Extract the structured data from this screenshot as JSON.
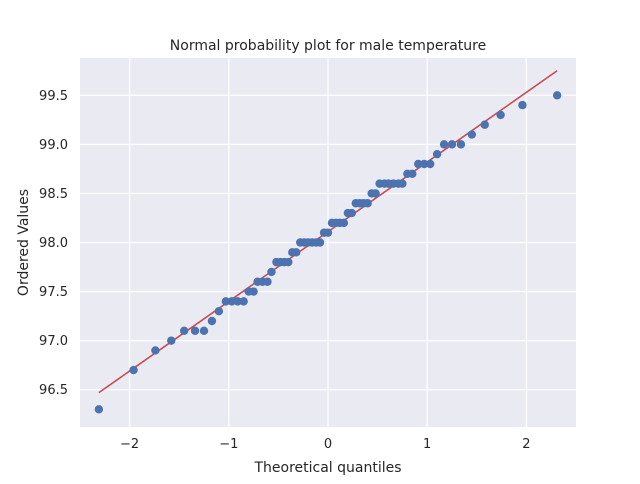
{
  "chart_data": {
    "type": "scatter",
    "title": "Normal probability plot for male temperature",
    "xlabel": "Theoretical quantiles",
    "ylabel": "Ordered Values",
    "xlim": [
      -2.5,
      2.5
    ],
    "ylim": [
      96.12,
      99.88
    ],
    "xticks": [
      -2,
      -1,
      0,
      1,
      2
    ],
    "xtick_labels": [
      "−2",
      "−1",
      "0",
      "1",
      "2"
    ],
    "yticks": [
      96.5,
      97.0,
      97.5,
      98.0,
      98.5,
      99.0,
      99.5
    ],
    "ytick_labels": [
      "96.5",
      "97.0",
      "97.5",
      "98.0",
      "98.5",
      "99.0",
      "99.5"
    ],
    "grid": true,
    "background": "#eaeaf2",
    "grid_color": "#ffffff",
    "point_color": "#4c72b0",
    "line_color": "#c44e52",
    "fit_line": {
      "x": [
        -2.31,
        2.31
      ],
      "y": [
        96.47,
        99.75
      ]
    },
    "points": [
      [
        -2.31,
        96.3
      ],
      [
        -1.96,
        96.7
      ],
      [
        -1.74,
        96.9
      ],
      [
        -1.58,
        97.0
      ],
      [
        -1.45,
        97.1
      ],
      [
        -1.34,
        97.1
      ],
      [
        -1.25,
        97.1
      ],
      [
        -1.17,
        97.2
      ],
      [
        -1.1,
        97.3
      ],
      [
        -1.03,
        97.4
      ],
      [
        -0.97,
        97.4
      ],
      [
        -0.91,
        97.4
      ],
      [
        -0.85,
        97.4
      ],
      [
        -0.8,
        97.5
      ],
      [
        -0.75,
        97.5
      ],
      [
        -0.71,
        97.6
      ],
      [
        -0.66,
        97.6
      ],
      [
        -0.61,
        97.6
      ],
      [
        -0.57,
        97.7
      ],
      [
        -0.52,
        97.8
      ],
      [
        -0.48,
        97.8
      ],
      [
        -0.44,
        97.8
      ],
      [
        -0.4,
        97.8
      ],
      [
        -0.36,
        97.9
      ],
      [
        -0.32,
        97.9
      ],
      [
        -0.28,
        98.0
      ],
      [
        -0.24,
        98.0
      ],
      [
        -0.2,
        98.0
      ],
      [
        -0.16,
        98.0
      ],
      [
        -0.12,
        98.0
      ],
      [
        -0.08,
        98.0
      ],
      [
        -0.04,
        98.1
      ],
      [
        0.0,
        98.1
      ],
      [
        0.04,
        98.2
      ],
      [
        0.08,
        98.2
      ],
      [
        0.12,
        98.2
      ],
      [
        0.16,
        98.2
      ],
      [
        0.2,
        98.3
      ],
      [
        0.24,
        98.3
      ],
      [
        0.28,
        98.4
      ],
      [
        0.32,
        98.4
      ],
      [
        0.36,
        98.4
      ],
      [
        0.4,
        98.4
      ],
      [
        0.44,
        98.5
      ],
      [
        0.48,
        98.5
      ],
      [
        0.52,
        98.6
      ],
      [
        0.57,
        98.6
      ],
      [
        0.61,
        98.6
      ],
      [
        0.66,
        98.6
      ],
      [
        0.71,
        98.6
      ],
      [
        0.75,
        98.6
      ],
      [
        0.8,
        98.7
      ],
      [
        0.85,
        98.7
      ],
      [
        0.91,
        98.8
      ],
      [
        0.97,
        98.8
      ],
      [
        1.03,
        98.8
      ],
      [
        1.1,
        98.9
      ],
      [
        1.17,
        99.0
      ],
      [
        1.25,
        99.0
      ],
      [
        1.34,
        99.0
      ],
      [
        1.45,
        99.1
      ],
      [
        1.58,
        99.2
      ],
      [
        1.74,
        99.3
      ],
      [
        1.96,
        99.4
      ],
      [
        2.31,
        99.5
      ]
    ]
  }
}
